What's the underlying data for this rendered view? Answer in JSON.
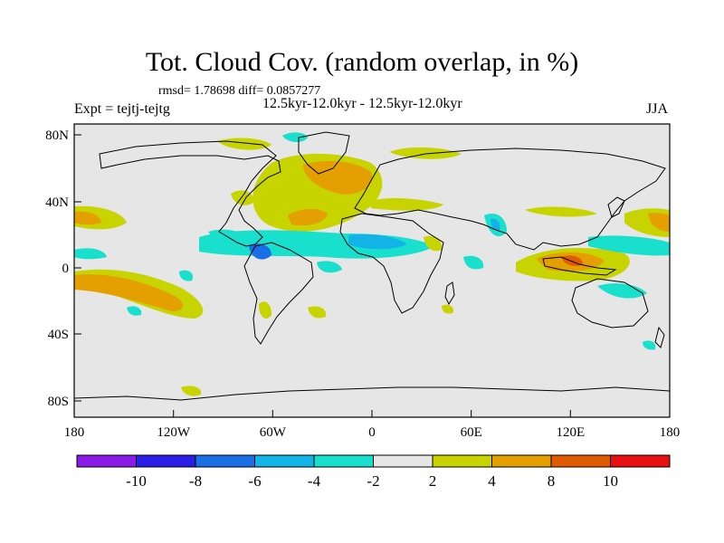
{
  "title": "Tot. Cloud Cov. (random overlap, in %)",
  "stats": {
    "rmsd_label": "rmsd= 1.78698 diff= 0.0857277"
  },
  "experiment_label": "Expt = tejtj-tejtg",
  "period_label": "12.5kyr-12.0kyr - 12.5kyr-12.0kyr",
  "season_label": "JJA",
  "axes": {
    "x_ticks": [
      "180",
      "120W",
      "60W",
      "0",
      "60E",
      "120E",
      "180"
    ],
    "y_ticks": [
      "80N",
      "40N",
      "0",
      "40S",
      "80S"
    ]
  },
  "colorbar": {
    "labels": [
      "-10",
      "-8",
      "-6",
      "-4",
      "-2",
      "2",
      "4",
      "8",
      "10"
    ],
    "colors": [
      "#8a1be6",
      "#2a1ee6",
      "#1a6fe6",
      "#12b4e8",
      "#19e0cc",
      "#e6e6e6",
      "#c8d400",
      "#e4a000",
      "#e05a00",
      "#e81010"
    ]
  },
  "colors": {
    "land_outline": "#000000",
    "background": "#e6e6e6",
    "positive": "#c8d400",
    "positive_strong": "#e4a000",
    "negative": "#19e0cc",
    "negative_strong": "#12b4e8",
    "negative_deep": "#1a6fe6"
  }
}
